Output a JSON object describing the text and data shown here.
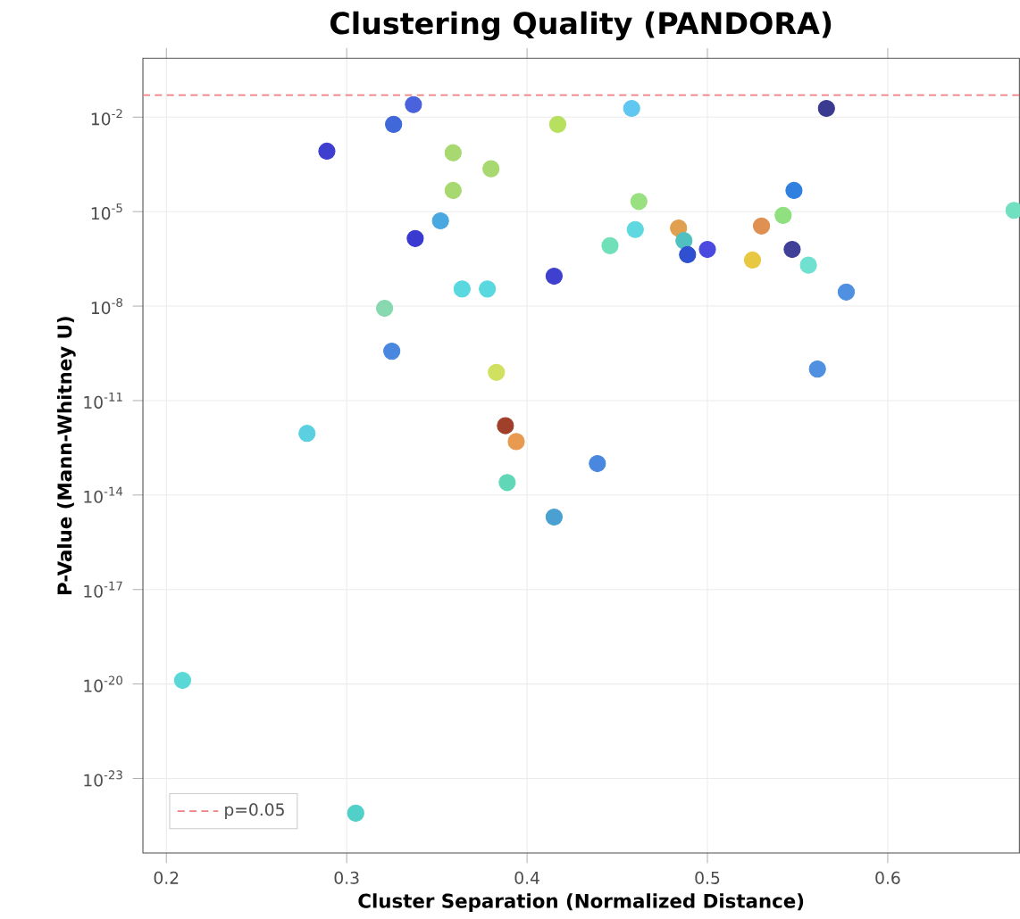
{
  "chart_data": {
    "type": "scatter",
    "title": "Clustering Quality (PANDORA)",
    "xlabel": "Cluster Separation (Normalized Distance)",
    "ylabel": "P-Value (Mann-Whitney U)",
    "x": [
      0.289,
      0.326,
      0.337,
      0.359,
      0.38,
      0.359,
      0.352,
      0.338,
      0.364,
      0.378,
      0.321,
      0.325,
      0.383,
      0.278,
      0.388,
      0.394,
      0.389,
      0.439,
      0.415,
      0.209,
      0.305,
      0.417,
      0.458,
      0.566,
      0.462,
      0.46,
      0.446,
      0.415,
      0.484,
      0.487,
      0.489,
      0.5,
      0.525,
      0.53,
      0.542,
      0.548,
      0.547,
      0.556,
      0.577,
      0.561,
      0.67
    ],
    "values": [
      0.00083,
      0.0059,
      0.025,
      0.00074,
      0.00023,
      4.7e-05,
      5.1e-06,
      1.4e-06,
      3.5e-08,
      3.5e-08,
      8.5e-09,
      3.7e-10,
      7.9e-11,
      9.1e-13,
      1.6e-12,
      5e-13,
      2.5e-14,
      1e-13,
      2e-15,
      1.3e-20,
      7.9e-25,
      0.0059,
      0.019,
      0.019,
      2.1e-05,
      2.7e-06,
      8.3e-07,
      8.9e-08,
      3e-06,
      1.2e-06,
      4.3e-07,
      6.3e-07,
      2.9e-07,
      3.5e-06,
      7.6e-06,
      4.7e-05,
      6.3e-07,
      2e-07,
      2.8e-08,
      1e-10,
      1.1e-05
    ],
    "colors": [
      "#3f3fcf",
      "#4068d8",
      "#4a62dc",
      "#a8d870",
      "#a8d870",
      "#a8d870",
      "#4aa8e0",
      "#3a3ad0",
      "#5ad8e0",
      "#5ad8e0",
      "#88d8b0",
      "#4a88e0",
      "#d0e060",
      "#5ad0e0",
      "#a0402a",
      "#e89a50",
      "#60d8b8",
      "#4a88e0",
      "#4aa0d0",
      "#5ad8d8",
      "#50d0c8",
      "#b8e060",
      "#60c8f0",
      "#3a3a90",
      "#98e080",
      "#60d8e0",
      "#70e0b8",
      "#4040d0",
      "#e0a050",
      "#50c0c0",
      "#3050d0",
      "#4a4ae0",
      "#e8c840",
      "#e09050",
      "#90e080",
      "#3080e0",
      "#404098",
      "#70e0d0",
      "#5090e0",
      "#5090e0",
      "#70e0c0"
    ],
    "xlim": [
      0.187,
      0.673
    ],
    "ylim": [
      4.3e-26,
      0.74
    ],
    "xticks": [
      0.2,
      0.3,
      0.4,
      0.5,
      0.6
    ],
    "yticks": [
      {
        "value": 1e-23,
        "label": "10$^{-23}$"
      },
      {
        "value": 1e-20,
        "label": "10$^{-20}$"
      },
      {
        "value": 1e-17,
        "label": "10$^{-17}$"
      },
      {
        "value": 1e-14,
        "label": "10$^{-14}$"
      },
      {
        "value": 1e-11,
        "label": "10$^{-11}$"
      },
      {
        "value": 1e-08,
        "label": "10$^{-8}$"
      },
      {
        "value": 1e-05,
        "label": "10$^{-5}$"
      },
      {
        "value": 0.01,
        "label": "10$^{-2}$"
      }
    ],
    "ref_lines": [
      {
        "axis": "y",
        "value": 0.05,
        "label": "p=0.05",
        "color": "#f08080",
        "line_style": "dashed"
      }
    ],
    "log": "y",
    "grid": true,
    "legend": "bottom left",
    "marker": "circle"
  }
}
